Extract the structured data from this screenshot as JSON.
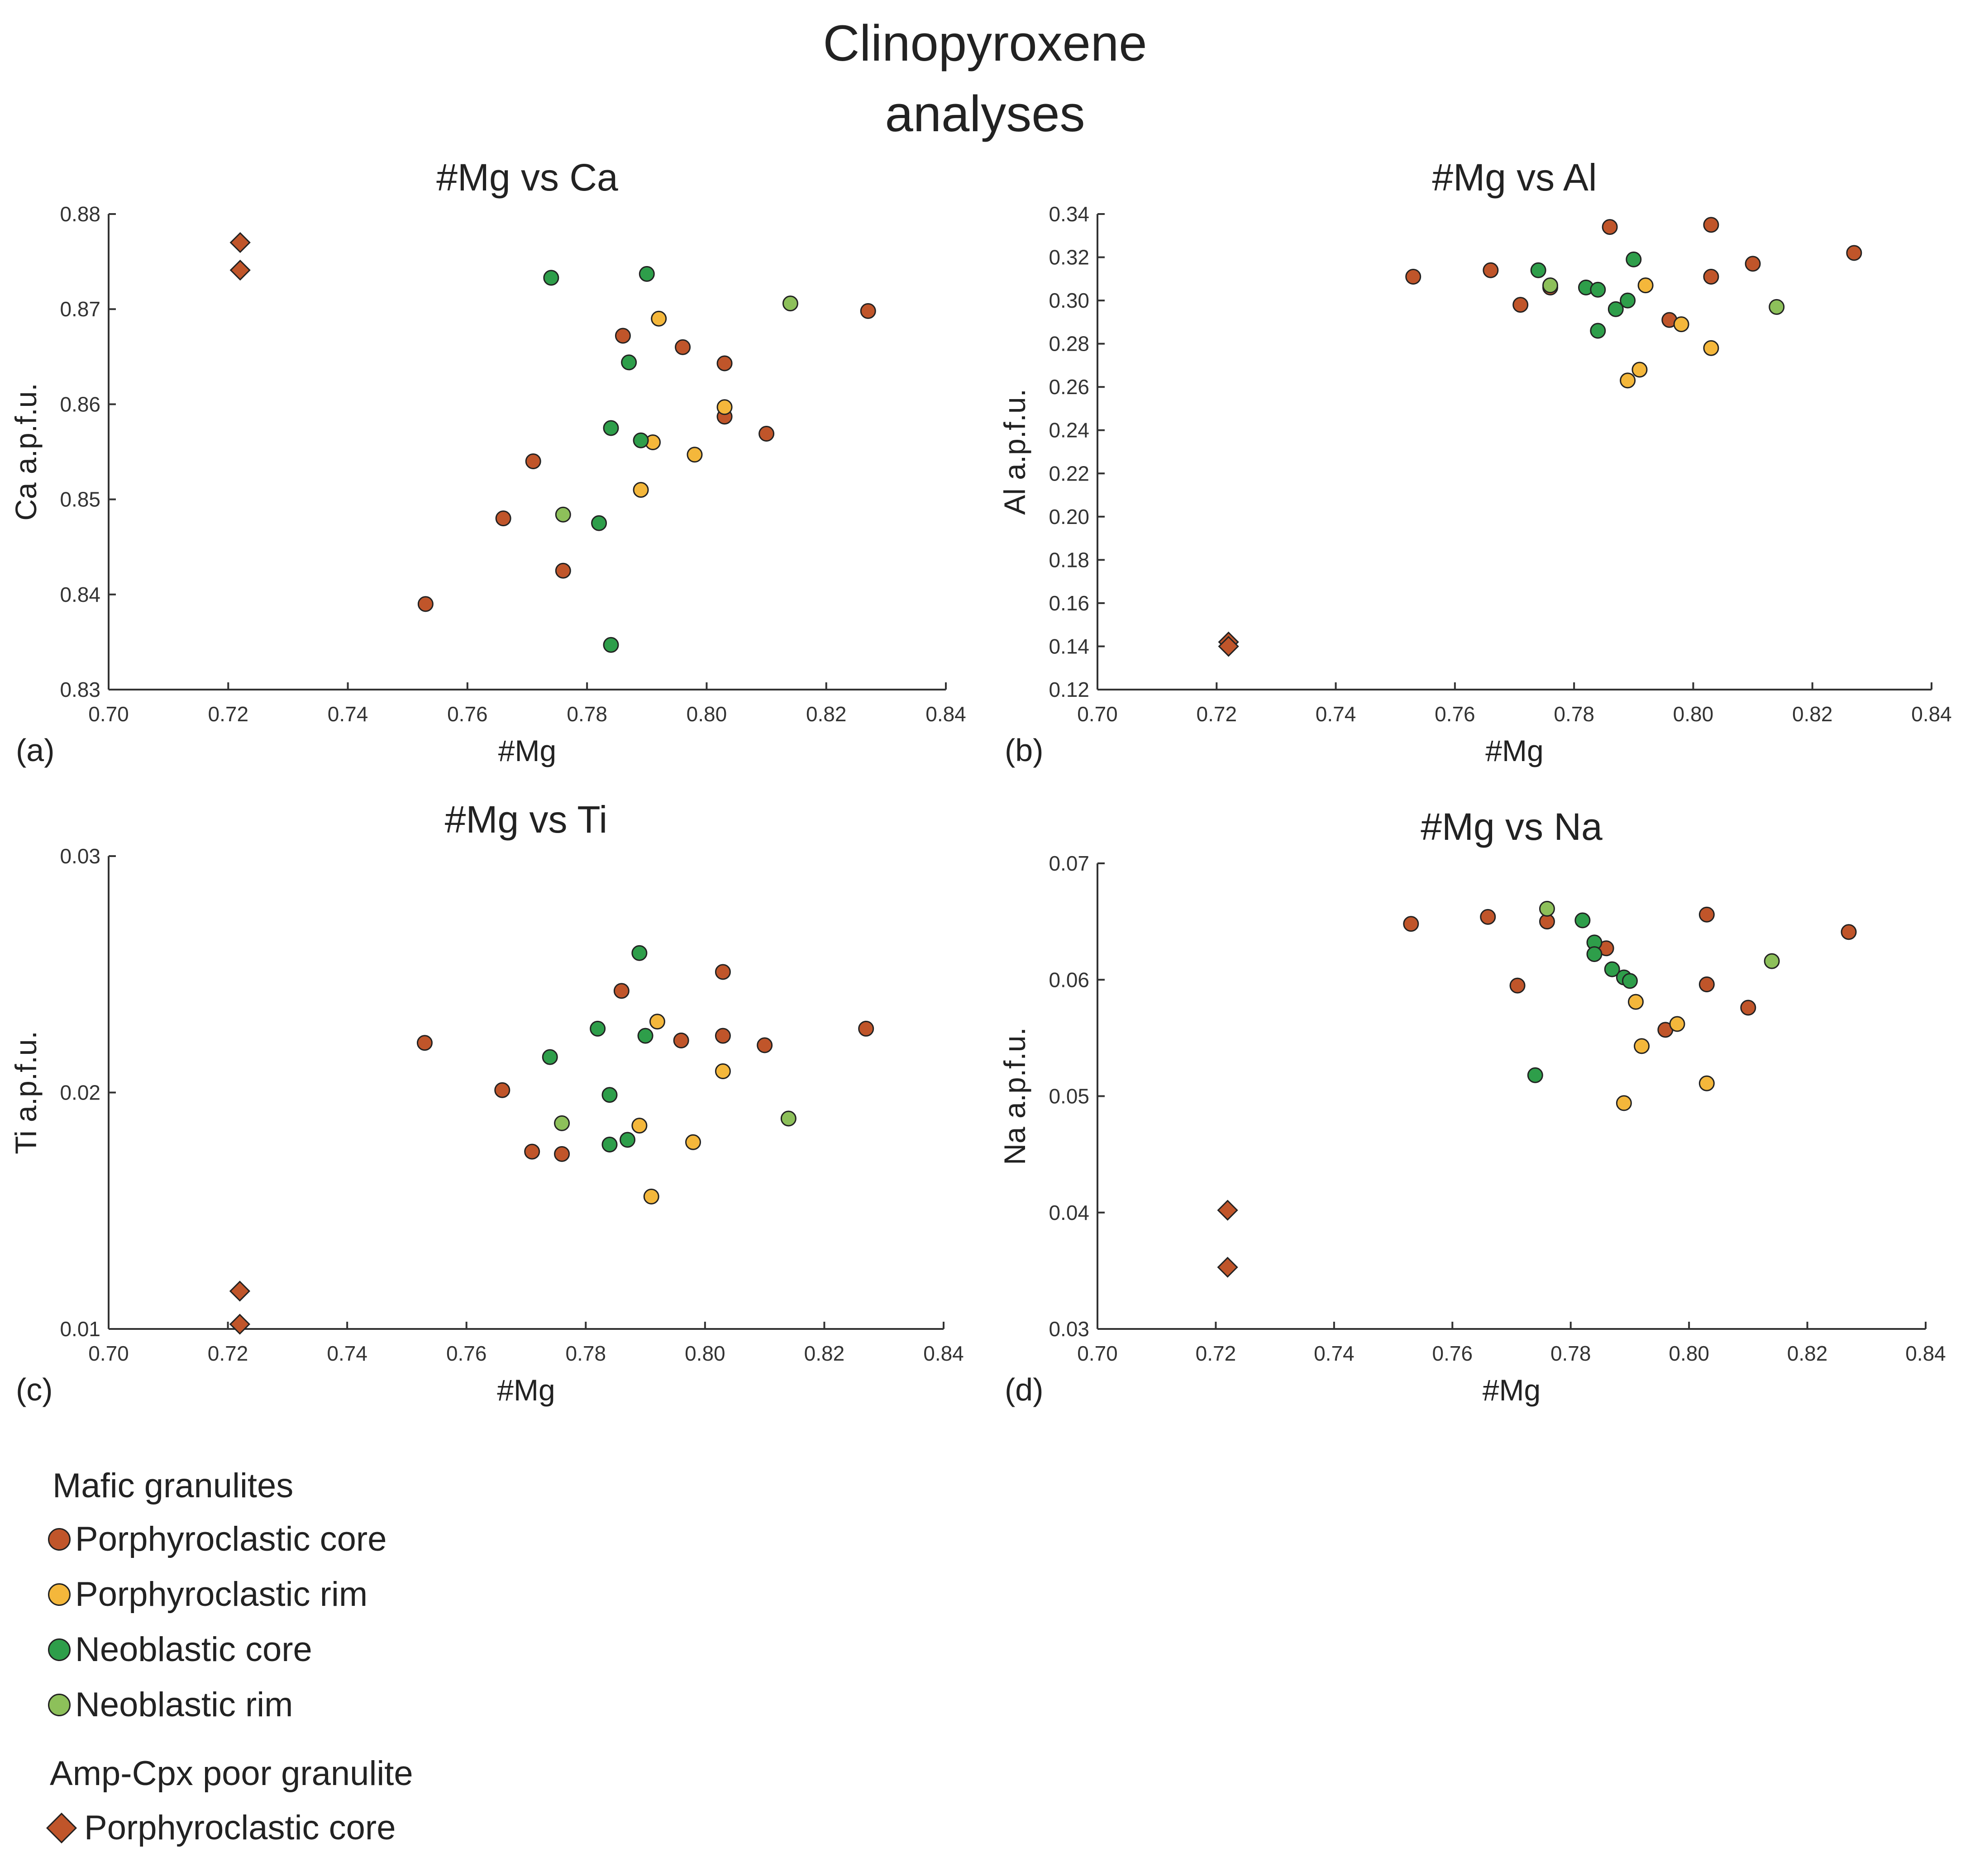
{
  "figure": {
    "title_line1": "Clinopyroxene",
    "title_line2": "analyses"
  },
  "colors": {
    "porph_core": "#C0552A",
    "porph_rim": "#F4B73B",
    "neo_core": "#2E9E4A",
    "neo_rim": "#8DC05A"
  },
  "legend": {
    "group1_title": "Mafic granulites",
    "porph_core": "Porphyroclastic core",
    "porph_rim": "Porphyroclastic rim",
    "neo_core": "Neoblastic core",
    "neo_rim": "Neoblastic rim",
    "group2_title": "Amp-Cpx poor granulite",
    "amp_core": "Porphyroclastic core"
  },
  "chart_data": [
    {
      "type": "scatter",
      "panel": "(a)",
      "title": "#Mg vs Ca",
      "xlabel": "#Mg",
      "ylabel": "Ca a.p.f.u.",
      "xlim": [
        0.7,
        0.84
      ],
      "ylim": [
        0.83,
        0.88
      ],
      "xticks": [
        "0.70",
        "0.72",
        "0.74",
        "0.76",
        "0.78",
        "0.80",
        "0.82",
        "0.84"
      ],
      "yticks": [
        "0.83",
        "0.84",
        "0.85",
        "0.86",
        "0.87",
        "0.88"
      ],
      "series": [
        {
          "name": "Porphyroclastic core",
          "marker": "circle",
          "color_key": "porph_core",
          "points": [
            [
              0.753,
              0.839
            ],
            [
              0.766,
              0.848
            ],
            [
              0.771,
              0.854
            ],
            [
              0.776,
              0.8425
            ],
            [
              0.786,
              0.8672
            ],
            [
              0.796,
              0.866
            ],
            [
              0.803,
              0.8643
            ],
            [
              0.803,
              0.8587
            ],
            [
              0.81,
              0.8569
            ],
            [
              0.827,
              0.8698
            ]
          ]
        },
        {
          "name": "Porphyroclastic rim",
          "marker": "circle",
          "color_key": "porph_rim",
          "points": [
            [
              0.789,
              0.851
            ],
            [
              0.791,
              0.856
            ],
            [
              0.792,
              0.869
            ],
            [
              0.798,
              0.8547
            ],
            [
              0.803,
              0.8597
            ]
          ]
        },
        {
          "name": "Neoblastic core",
          "marker": "circle",
          "color_key": "neo_core",
          "points": [
            [
              0.774,
              0.8733
            ],
            [
              0.782,
              0.8475
            ],
            [
              0.784,
              0.8575
            ],
            [
              0.784,
              0.8347
            ],
            [
              0.787,
              0.8644
            ],
            [
              0.789,
              0.8562
            ],
            [
              0.79,
              0.8737
            ]
          ]
        },
        {
          "name": "Neoblastic rim",
          "marker": "circle",
          "color_key": "neo_rim",
          "points": [
            [
              0.776,
              0.8484
            ],
            [
              0.814,
              0.8706
            ]
          ]
        },
        {
          "name": "Amp-Cpx poor granulite Porphyroclastic core",
          "marker": "diamond",
          "color_key": "porph_core",
          "points": [
            [
              0.722,
              0.877
            ],
            [
              0.722,
              0.8741
            ]
          ]
        }
      ]
    },
    {
      "type": "scatter",
      "panel": "(b)",
      "title": "#Mg vs Al",
      "xlabel": "#Mg",
      "ylabel": "Al a.p.f.u.",
      "xlim": [
        0.7,
        0.84
      ],
      "ylim": [
        0.12,
        0.34
      ],
      "xticks": [
        "0.70",
        "0.72",
        "0.74",
        "0.76",
        "0.78",
        "0.80",
        "0.82",
        "0.84"
      ],
      "yticks": [
        "0.12",
        "0.14",
        "0.16",
        "0.18",
        "0.20",
        "0.22",
        "0.24",
        "0.26",
        "0.28",
        "0.30",
        "0.32",
        "0.34"
      ],
      "series": [
        {
          "name": "Porphyroclastic core",
          "marker": "circle",
          "color_key": "porph_core",
          "points": [
            [
              0.753,
              0.311
            ],
            [
              0.766,
              0.314
            ],
            [
              0.771,
              0.298
            ],
            [
              0.776,
              0.306
            ],
            [
              0.786,
              0.334
            ],
            [
              0.796,
              0.291
            ],
            [
              0.803,
              0.335
            ],
            [
              0.803,
              0.311
            ],
            [
              0.81,
              0.317
            ],
            [
              0.827,
              0.322
            ]
          ]
        },
        {
          "name": "Porphyroclastic rim",
          "marker": "circle",
          "color_key": "porph_rim",
          "points": [
            [
              0.789,
              0.263
            ],
            [
              0.791,
              0.268
            ],
            [
              0.792,
              0.307
            ],
            [
              0.798,
              0.289
            ],
            [
              0.803,
              0.278
            ]
          ]
        },
        {
          "name": "Neoblastic core",
          "marker": "circle",
          "color_key": "neo_core",
          "points": [
            [
              0.774,
              0.314
            ],
            [
              0.782,
              0.306
            ],
            [
              0.784,
              0.305
            ],
            [
              0.784,
              0.286
            ],
            [
              0.787,
              0.296
            ],
            [
              0.789,
              0.3
            ],
            [
              0.79,
              0.319
            ]
          ]
        },
        {
          "name": "Neoblastic rim",
          "marker": "circle",
          "color_key": "neo_rim",
          "points": [
            [
              0.776,
              0.307
            ],
            [
              0.814,
              0.297
            ]
          ]
        },
        {
          "name": "Amp-Cpx poor granulite Porphyroclastic core",
          "marker": "diamond",
          "color_key": "porph_core",
          "points": [
            [
              0.722,
              0.142
            ],
            [
              0.722,
              0.14
            ]
          ]
        }
      ]
    },
    {
      "type": "scatter",
      "panel": "(c)",
      "title": "#Mg vs Ti",
      "xlabel": "#Mg",
      "ylabel": "Ti a.p.f.u.",
      "xlim": [
        0.7,
        0.84
      ],
      "ylim": [
        0.01,
        0.03
      ],
      "xticks": [
        "0.70",
        "0.72",
        "0.74",
        "0.76",
        "0.78",
        "0.80",
        "0.82",
        "0.84"
      ],
      "yticks": [
        "0.01",
        "0.02",
        "0.03"
      ],
      "series": [
        {
          "name": "Porphyroclastic core",
          "marker": "circle",
          "color_key": "porph_core",
          "points": [
            [
              0.753,
              0.0221
            ],
            [
              0.766,
              0.0201
            ],
            [
              0.771,
              0.0175
            ],
            [
              0.776,
              0.0174
            ],
            [
              0.786,
              0.0243
            ],
            [
              0.796,
              0.0222
            ],
            [
              0.803,
              0.0251
            ],
            [
              0.803,
              0.0224
            ],
            [
              0.81,
              0.022
            ],
            [
              0.827,
              0.0227
            ]
          ]
        },
        {
          "name": "Porphyroclastic rim",
          "marker": "circle",
          "color_key": "porph_rim",
          "points": [
            [
              0.789,
              0.0186
            ],
            [
              0.791,
              0.0156
            ],
            [
              0.792,
              0.023
            ],
            [
              0.798,
              0.0179
            ],
            [
              0.803,
              0.0209
            ]
          ]
        },
        {
          "name": "Neoblastic core",
          "marker": "circle",
          "color_key": "neo_core",
          "points": [
            [
              0.774,
              0.0215
            ],
            [
              0.782,
              0.0227
            ],
            [
              0.784,
              0.0199
            ],
            [
              0.784,
              0.0178
            ],
            [
              0.787,
              0.018
            ],
            [
              0.789,
              0.0259
            ],
            [
              0.79,
              0.0224
            ]
          ]
        },
        {
          "name": "Neoblastic rim",
          "marker": "circle",
          "color_key": "neo_rim",
          "points": [
            [
              0.776,
              0.0187
            ],
            [
              0.814,
              0.0189
            ]
          ]
        },
        {
          "name": "Amp-Cpx poor granulite Porphyroclastic core",
          "marker": "diamond",
          "color_key": "porph_core",
          "points": [
            [
              0.722,
              0.0116
            ],
            [
              0.722,
              0.0102
            ]
          ]
        }
      ]
    },
    {
      "type": "scatter",
      "panel": "(d)",
      "title": "#Mg vs Na",
      "xlabel": "#Mg",
      "ylabel": "Na a.p.f.u.",
      "xlim": [
        0.7,
        0.84
      ],
      "ylim": [
        0.03,
        0.07
      ],
      "xticks": [
        "0.70",
        "0.72",
        "0.74",
        "0.76",
        "0.78",
        "0.80",
        "0.82",
        "0.84"
      ],
      "yticks": [
        "0.03",
        "0.04",
        "0.05",
        "0.06",
        "0.07"
      ],
      "series": [
        {
          "name": "Porphyroclastic core",
          "marker": "circle",
          "color_key": "porph_core",
          "points": [
            [
              0.753,
              0.0648
            ],
            [
              0.766,
              0.0654
            ],
            [
              0.771,
              0.0595
            ],
            [
              0.776,
              0.065
            ],
            [
              0.786,
              0.0627
            ],
            [
              0.796,
              0.0557
            ],
            [
              0.803,
              0.0656
            ],
            [
              0.803,
              0.0596
            ],
            [
              0.81,
              0.0576
            ],
            [
              0.827,
              0.0641
            ]
          ]
        },
        {
          "name": "Porphyroclastic rim",
          "marker": "circle",
          "color_key": "porph_rim",
          "points": [
            [
              0.789,
              0.0494
            ],
            [
              0.791,
              0.0581
            ],
            [
              0.792,
              0.0543
            ],
            [
              0.798,
              0.0562
            ],
            [
              0.803,
              0.0511
            ]
          ]
        },
        {
          "name": "Neoblastic core",
          "marker": "circle",
          "color_key": "neo_core",
          "points": [
            [
              0.774,
              0.0518
            ],
            [
              0.782,
              0.0651
            ],
            [
              0.784,
              0.0632
            ],
            [
              0.784,
              0.0622
            ],
            [
              0.787,
              0.0609
            ],
            [
              0.789,
              0.0602
            ],
            [
              0.79,
              0.0599
            ]
          ]
        },
        {
          "name": "Neoblastic rim",
          "marker": "circle",
          "color_key": "neo_rim",
          "points": [
            [
              0.776,
              0.0661
            ],
            [
              0.814,
              0.0616
            ]
          ]
        },
        {
          "name": "Amp-Cpx poor granulite Porphyroclastic core",
          "marker": "diamond",
          "color_key": "porph_core",
          "points": [
            [
              0.722,
              0.0402
            ],
            [
              0.722,
              0.0353
            ]
          ]
        }
      ]
    }
  ]
}
